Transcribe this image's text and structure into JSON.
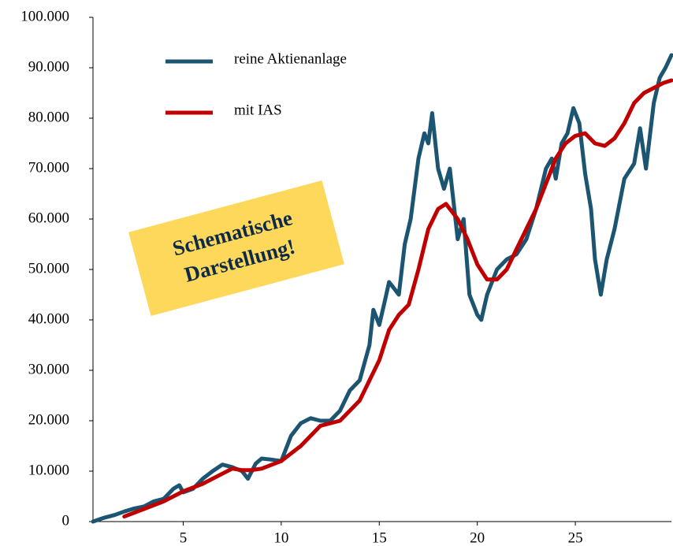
{
  "chart_data": {
    "type": "line",
    "legend": "top-left",
    "annotation": [
      "Schematische",
      "Darstellung!"
    ],
    "xlim": [
      0.4,
      29.9
    ],
    "xticks": [
      5,
      10,
      15,
      20,
      25
    ],
    "ylim": [
      0,
      100000
    ],
    "yticks": [
      {
        "value": 0,
        "label": "0"
      },
      {
        "value": 10000,
        "label": "10.000"
      },
      {
        "value": 20000,
        "label": "20.000"
      },
      {
        "value": 30000,
        "label": "30.000"
      },
      {
        "value": 40000,
        "label": "40.000"
      },
      {
        "value": 50000,
        "label": "50.000"
      },
      {
        "value": 60000,
        "label": "60.000"
      },
      {
        "value": 70000,
        "label": "70.000"
      },
      {
        "value": 80000,
        "label": "80.000"
      },
      {
        "value": 90000,
        "label": "90.000"
      },
      {
        "value": 100000,
        "label": "100.000"
      }
    ],
    "series": [
      {
        "name": "reine Aktienanlage",
        "color": "#1b5571",
        "x": [
          0.4,
          1,
          1.5,
          2,
          2.5,
          3,
          3.5,
          4,
          4.5,
          4.8,
          5,
          5.5,
          6,
          6.5,
          7,
          7.5,
          8,
          8.3,
          8.7,
          9,
          9.5,
          10,
          10.5,
          11,
          11.5,
          12,
          12.5,
          13,
          13.5,
          14,
          14.5,
          14.7,
          15,
          15.3,
          15.5,
          15.8,
          16,
          16.3,
          16.6,
          17,
          17.3,
          17.5,
          17.7,
          18,
          18.3,
          18.6,
          19,
          19.3,
          19.6,
          20,
          20.2,
          20.5,
          21,
          21.5,
          22,
          22.5,
          23,
          23.5,
          23.8,
          24,
          24.3,
          24.6,
          24.9,
          25.2,
          25.5,
          25.8,
          26,
          26.3,
          26.6,
          27,
          27.5,
          28,
          28.3,
          28.6,
          29,
          29.3,
          29.6,
          29.9
        ],
        "values": [
          0,
          800,
          1300,
          2000,
          2600,
          3000,
          4000,
          4500,
          6500,
          7200,
          5800,
          6500,
          8500,
          10000,
          11300,
          10800,
          10000,
          8500,
          11500,
          12500,
          12300,
          12000,
          17000,
          19500,
          20500,
          20000,
          20000,
          22000,
          26000,
          28000,
          35000,
          42000,
          39000,
          44000,
          47500,
          46000,
          45000,
          55000,
          60000,
          72000,
          77000,
          75000,
          81000,
          70000,
          66000,
          70000,
          56000,
          60000,
          45000,
          41000,
          40000,
          45000,
          50000,
          52000,
          53000,
          56000,
          62000,
          70000,
          72000,
          68000,
          75000,
          77000,
          82000,
          79000,
          69000,
          62000,
          52000,
          45000,
          52000,
          58000,
          68000,
          71000,
          78000,
          70000,
          83000,
          88000,
          90000,
          92500
        ]
      },
      {
        "name": "mit IAS",
        "color": "#c00000",
        "x": [
          2,
          3,
          4,
          5,
          6,
          7,
          7.5,
          8,
          8.5,
          9,
          10,
          11,
          12,
          13,
          14,
          15,
          15.5,
          16,
          16.5,
          17,
          17.5,
          18,
          18.4,
          19,
          19.5,
          20,
          20.5,
          21,
          21.5,
          22,
          23,
          24,
          24.5,
          25,
          25.5,
          26,
          26.5,
          27,
          27.5,
          28,
          28.5,
          29,
          29.5,
          29.9
        ],
        "values": [
          1000,
          2500,
          4000,
          6000,
          7500,
          9500,
          10500,
          10200,
          10200,
          10500,
          12000,
          15000,
          19000,
          20000,
          24000,
          32000,
          38000,
          41000,
          43000,
          50000,
          58000,
          62000,
          63000,
          60000,
          56000,
          51000,
          48000,
          48000,
          50000,
          54000,
          62000,
          72000,
          75000,
          76500,
          77000,
          75000,
          74500,
          76000,
          79000,
          83000,
          85000,
          86000,
          87000,
          87500
        ]
      }
    ]
  }
}
